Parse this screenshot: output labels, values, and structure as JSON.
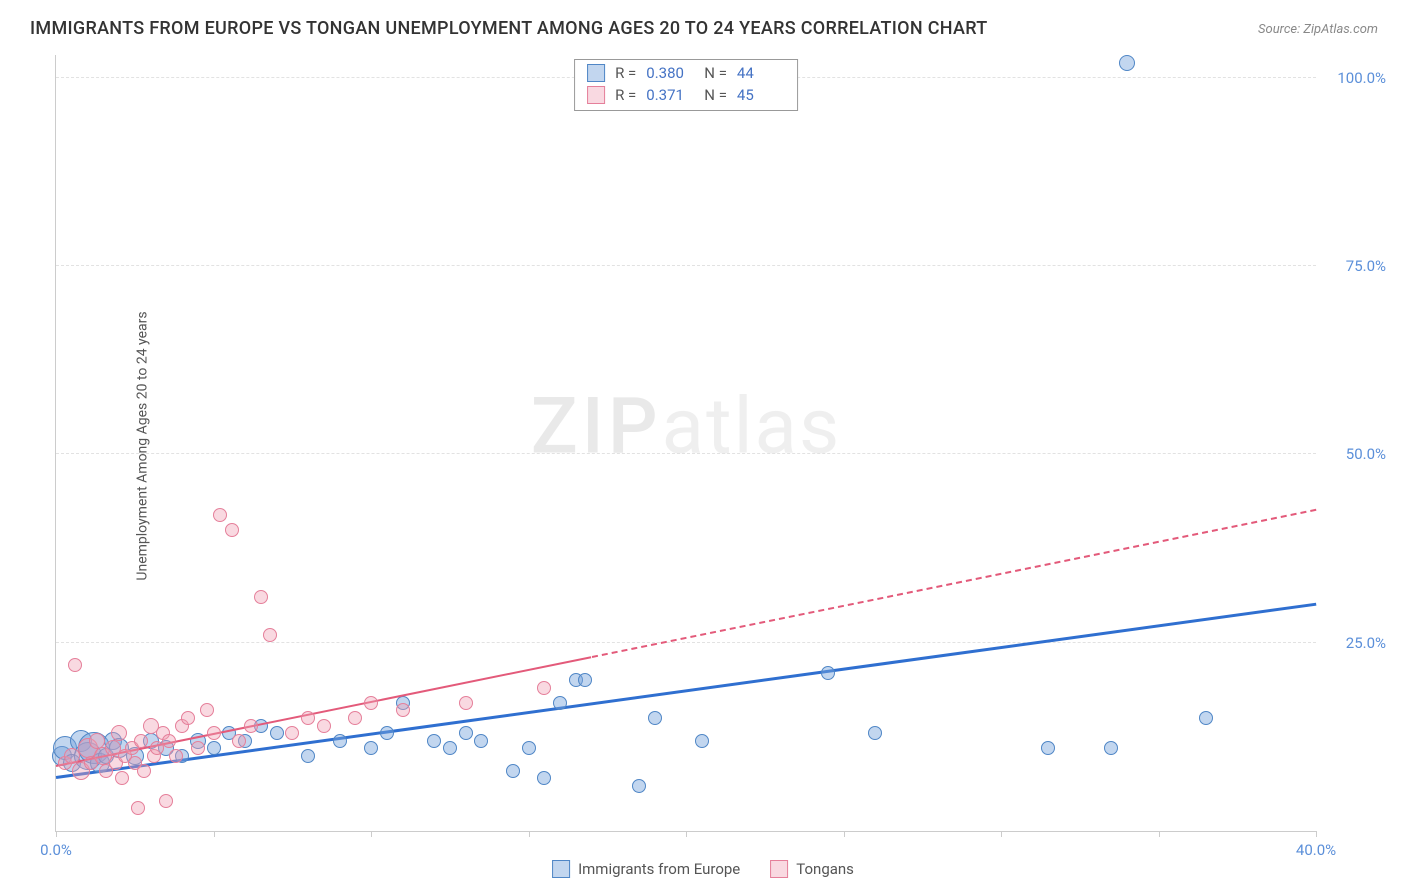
{
  "title": "IMMIGRANTS FROM EUROPE VS TONGAN UNEMPLOYMENT AMONG AGES 20 TO 24 YEARS CORRELATION CHART",
  "source": "Source: ZipAtlas.com",
  "ylabel": "Unemployment Among Ages 20 to 24 years",
  "watermark": {
    "a": "ZIP",
    "b": "atlas"
  },
  "chart": {
    "type": "scatter",
    "background_color": "#ffffff",
    "grid_color": "#e2e2e2",
    "axis_color": "#cccccc",
    "xlim": [
      0,
      40
    ],
    "ylim": [
      0,
      103
    ],
    "xticks": [
      0,
      5,
      10,
      15,
      20,
      25,
      30,
      35,
      40
    ],
    "xtick_labels": {
      "0": "0.0%",
      "40": "40.0%"
    },
    "yticks": [
      25,
      50,
      75,
      100
    ],
    "ytick_labels": {
      "25": "25.0%",
      "50": "50.0%",
      "75": "75.0%",
      "100": "100.0%"
    },
    "tick_label_color": "#5b8fd9",
    "tick_label_fontsize": 15,
    "series": [
      {
        "name": "Immigrants from Europe",
        "color_fill": "rgba(120,165,220,0.45)",
        "color_stroke": "#4f86c6",
        "R": "0.380",
        "N": "44",
        "trend": {
          "x0": 0,
          "y0": 7,
          "x1": 40,
          "y1": 30,
          "color": "#2f6fd0",
          "width": 2.5,
          "dash_from_x": null
        },
        "points": [
          {
            "x": 0.2,
            "y": 10,
            "r": 10
          },
          {
            "x": 0.3,
            "y": 11,
            "r": 12
          },
          {
            "x": 0.5,
            "y": 9,
            "r": 9
          },
          {
            "x": 0.8,
            "y": 12,
            "r": 11
          },
          {
            "x": 1.0,
            "y": 10,
            "r": 14
          },
          {
            "x": 1.2,
            "y": 11,
            "r": 16
          },
          {
            "x": 1.4,
            "y": 9,
            "r": 10
          },
          {
            "x": 1.6,
            "y": 10,
            "r": 8
          },
          {
            "x": 1.8,
            "y": 12,
            "r": 9
          },
          {
            "x": 2.0,
            "y": 11,
            "r": 10
          },
          {
            "x": 2.5,
            "y": 10,
            "r": 9
          },
          {
            "x": 3.0,
            "y": 12,
            "r": 8
          },
          {
            "x": 3.5,
            "y": 11,
            "r": 8
          },
          {
            "x": 4.0,
            "y": 10,
            "r": 7
          },
          {
            "x": 4.5,
            "y": 12,
            "r": 8
          },
          {
            "x": 5.0,
            "y": 11,
            "r": 7
          },
          {
            "x": 5.5,
            "y": 13,
            "r": 7
          },
          {
            "x": 6.0,
            "y": 12,
            "r": 7
          },
          {
            "x": 6.5,
            "y": 14,
            "r": 7
          },
          {
            "x": 7.0,
            "y": 13,
            "r": 7
          },
          {
            "x": 8.0,
            "y": 10,
            "r": 7
          },
          {
            "x": 9.0,
            "y": 12,
            "r": 7
          },
          {
            "x": 10.0,
            "y": 11,
            "r": 7
          },
          {
            "x": 10.5,
            "y": 13,
            "r": 7
          },
          {
            "x": 11.0,
            "y": 17,
            "r": 7
          },
          {
            "x": 12.0,
            "y": 12,
            "r": 7
          },
          {
            "x": 12.5,
            "y": 11,
            "r": 7
          },
          {
            "x": 13.0,
            "y": 13,
            "r": 7
          },
          {
            "x": 13.5,
            "y": 12,
            "r": 7
          },
          {
            "x": 14.5,
            "y": 8,
            "r": 7
          },
          {
            "x": 15.0,
            "y": 11,
            "r": 7
          },
          {
            "x": 15.5,
            "y": 7,
            "r": 7
          },
          {
            "x": 16.0,
            "y": 17,
            "r": 7
          },
          {
            "x": 16.5,
            "y": 20,
            "r": 7
          },
          {
            "x": 16.8,
            "y": 20,
            "r": 7
          },
          {
            "x": 18.5,
            "y": 6,
            "r": 7
          },
          {
            "x": 19.0,
            "y": 15,
            "r": 7
          },
          {
            "x": 20.5,
            "y": 12,
            "r": 7
          },
          {
            "x": 24.5,
            "y": 21,
            "r": 7
          },
          {
            "x": 26.0,
            "y": 13,
            "r": 7
          },
          {
            "x": 31.5,
            "y": 11,
            "r": 7
          },
          {
            "x": 33.5,
            "y": 11,
            "r": 7
          },
          {
            "x": 34.0,
            "y": 102,
            "r": 8
          },
          {
            "x": 36.5,
            "y": 15,
            "r": 7
          }
        ]
      },
      {
        "name": "Tongans",
        "color_fill": "rgba(240,160,180,0.40)",
        "color_stroke": "#e57f9a",
        "R": "0.371",
        "N": "45",
        "trend": {
          "x0": 0,
          "y0": 8.5,
          "x1": 40,
          "y1": 42.5,
          "color": "#e35a7a",
          "width": 2,
          "dash_from_x": 17
        },
        "points": [
          {
            "x": 0.3,
            "y": 9,
            "r": 7
          },
          {
            "x": 0.5,
            "y": 10,
            "r": 8
          },
          {
            "x": 0.6,
            "y": 22,
            "r": 7
          },
          {
            "x": 0.8,
            "y": 8,
            "r": 9
          },
          {
            "x": 1.0,
            "y": 11,
            "r": 10
          },
          {
            "x": 1.1,
            "y": 9,
            "r": 7
          },
          {
            "x": 1.3,
            "y": 12,
            "r": 8
          },
          {
            "x": 1.5,
            "y": 10,
            "r": 9
          },
          {
            "x": 1.6,
            "y": 8,
            "r": 7
          },
          {
            "x": 1.8,
            "y": 11,
            "r": 8
          },
          {
            "x": 1.9,
            "y": 9,
            "r": 7
          },
          {
            "x": 2.0,
            "y": 13,
            "r": 8
          },
          {
            "x": 2.1,
            "y": 7,
            "r": 7
          },
          {
            "x": 2.2,
            "y": 10,
            "r": 7
          },
          {
            "x": 2.4,
            "y": 11,
            "r": 7
          },
          {
            "x": 2.5,
            "y": 9,
            "r": 7
          },
          {
            "x": 2.6,
            "y": 3,
            "r": 7
          },
          {
            "x": 2.7,
            "y": 12,
            "r": 7
          },
          {
            "x": 2.8,
            "y": 8,
            "r": 7
          },
          {
            "x": 3.0,
            "y": 14,
            "r": 8
          },
          {
            "x": 3.1,
            "y": 10,
            "r": 7
          },
          {
            "x": 3.2,
            "y": 11,
            "r": 7
          },
          {
            "x": 3.4,
            "y": 13,
            "r": 7
          },
          {
            "x": 3.5,
            "y": 4,
            "r": 7
          },
          {
            "x": 3.6,
            "y": 12,
            "r": 7
          },
          {
            "x": 3.8,
            "y": 10,
            "r": 7
          },
          {
            "x": 4.0,
            "y": 14,
            "r": 7
          },
          {
            "x": 4.2,
            "y": 15,
            "r": 7
          },
          {
            "x": 4.5,
            "y": 11,
            "r": 7
          },
          {
            "x": 4.8,
            "y": 16,
            "r": 7
          },
          {
            "x": 5.0,
            "y": 13,
            "r": 7
          },
          {
            "x": 5.2,
            "y": 42,
            "r": 7
          },
          {
            "x": 5.6,
            "y": 40,
            "r": 7
          },
          {
            "x": 5.8,
            "y": 12,
            "r": 7
          },
          {
            "x": 6.2,
            "y": 14,
            "r": 7
          },
          {
            "x": 6.5,
            "y": 31,
            "r": 7
          },
          {
            "x": 6.8,
            "y": 26,
            "r": 7
          },
          {
            "x": 7.5,
            "y": 13,
            "r": 7
          },
          {
            "x": 8.0,
            "y": 15,
            "r": 7
          },
          {
            "x": 8.5,
            "y": 14,
            "r": 7
          },
          {
            "x": 9.5,
            "y": 15,
            "r": 7
          },
          {
            "x": 10.0,
            "y": 17,
            "r": 7
          },
          {
            "x": 11.0,
            "y": 16,
            "r": 7
          },
          {
            "x": 13.0,
            "y": 17,
            "r": 7
          },
          {
            "x": 15.5,
            "y": 19,
            "r": 7
          }
        ]
      }
    ],
    "legend_bottom": [
      {
        "label": "Immigrants from Europe",
        "fill": "rgba(120,165,220,0.45)",
        "stroke": "#4f86c6"
      },
      {
        "label": "Tongans",
        "fill": "rgba(240,160,180,0.40)",
        "stroke": "#e57f9a"
      }
    ]
  }
}
